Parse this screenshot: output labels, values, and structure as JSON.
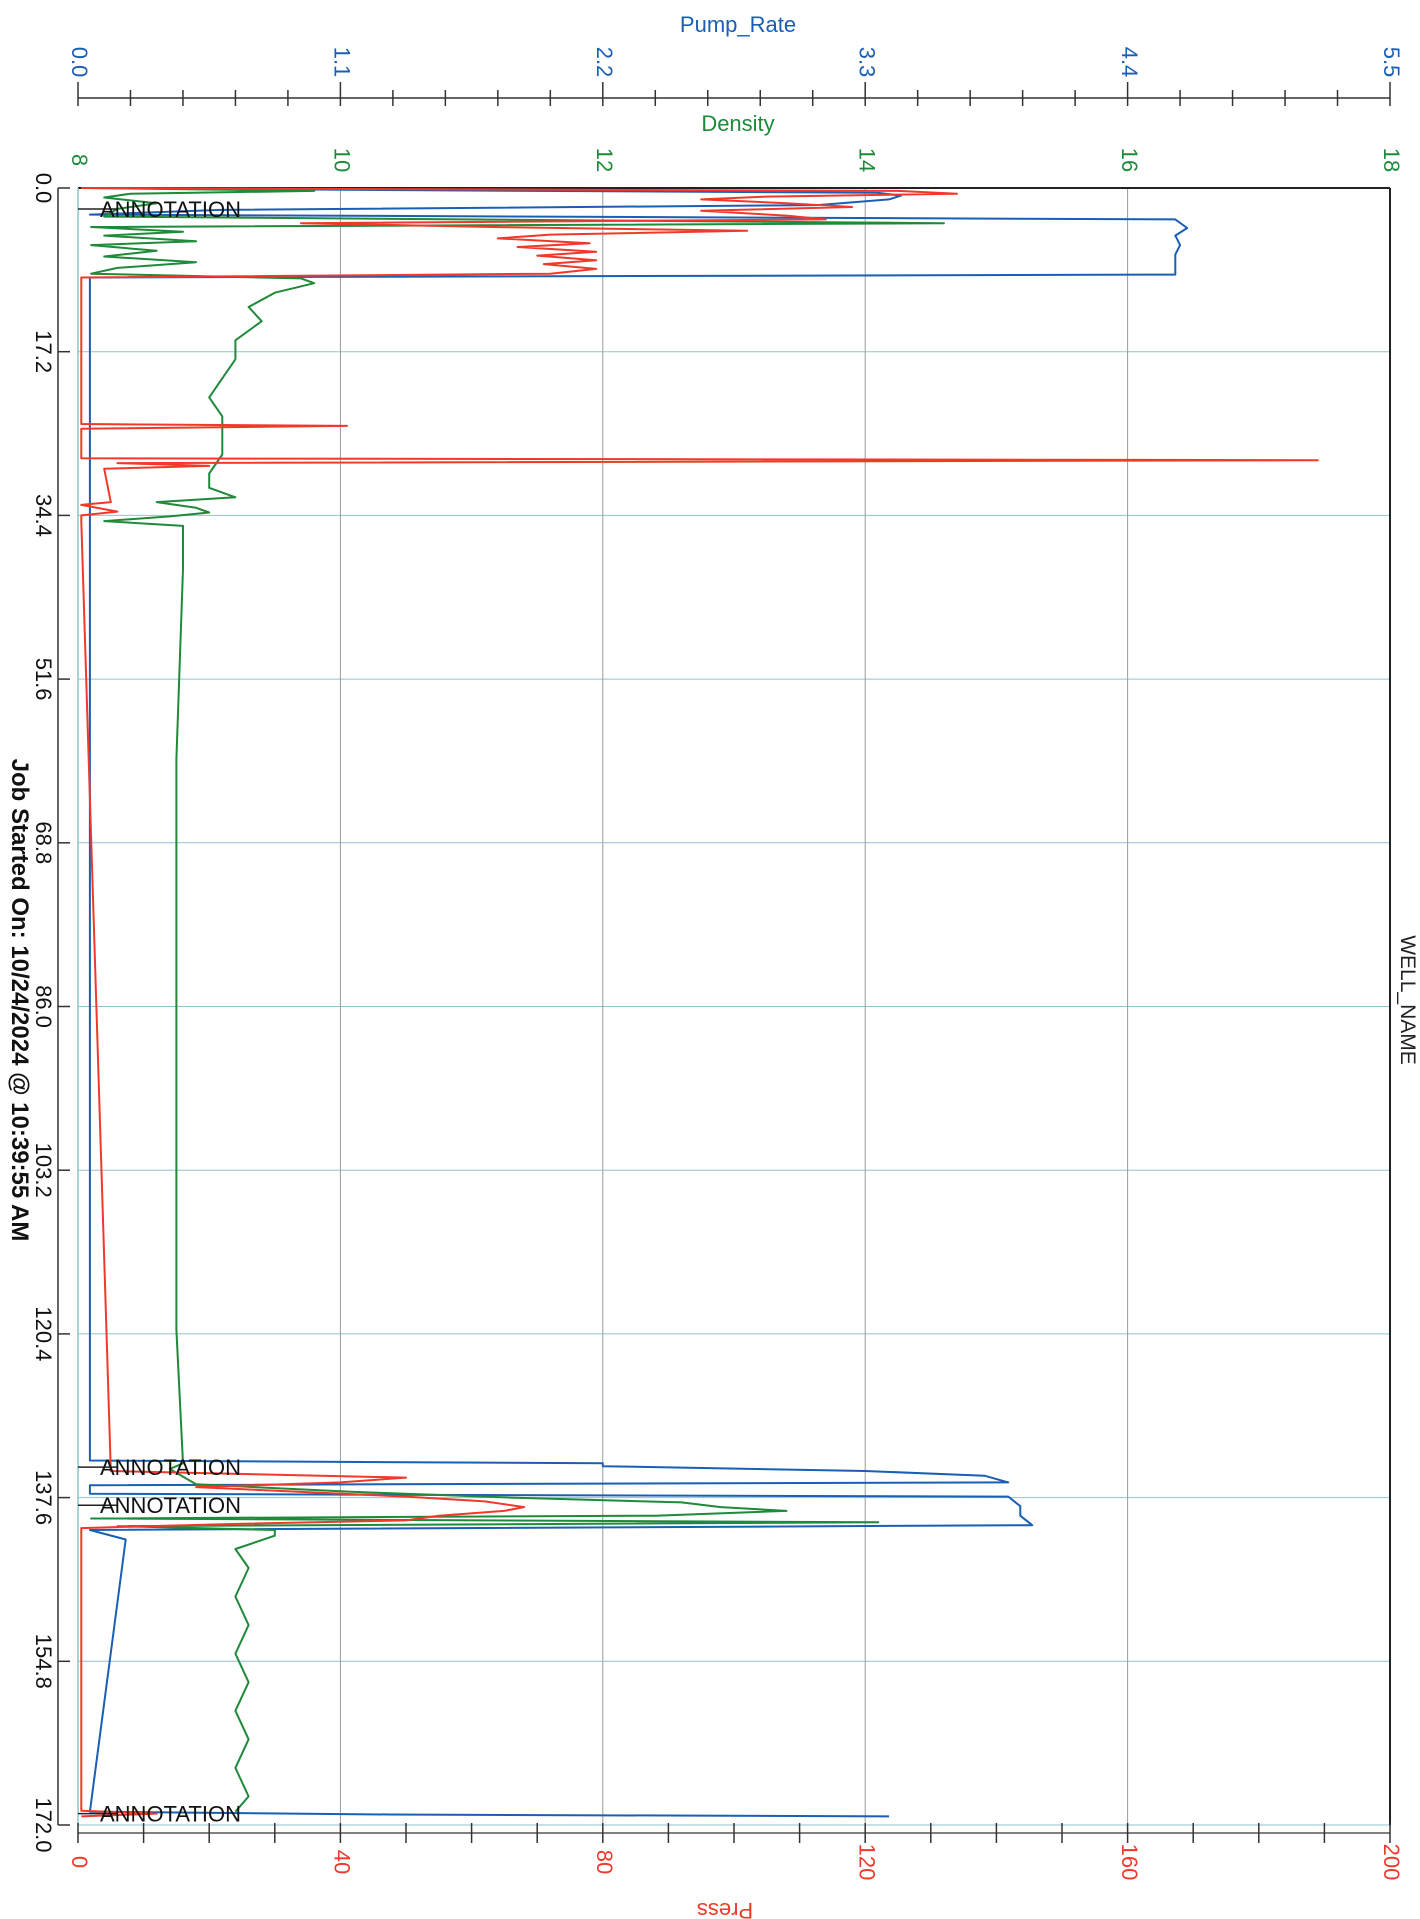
{
  "chart_data": {
    "type": "line",
    "orientation": "rotated-90-clockwise",
    "well_name": "WELL_NAME",
    "footer": "Job Started On: 10/24/2024 @ 10:39:55 AM",
    "time_axis": {
      "range": [
        0,
        172
      ],
      "ticks": [
        "0.0",
        "17.2",
        "34.4",
        "51.6",
        "68.8",
        "86.0",
        "103.2",
        "120.4",
        "137.6",
        "154.8",
        "172.0"
      ]
    },
    "axes": {
      "pump_rate": {
        "label": "Pump_Rate",
        "color": "#1a5fb4",
        "range": [
          0,
          5.5
        ],
        "ticks": [
          "0.0",
          "1.1",
          "2.2",
          "3.3",
          "4.4",
          "5.5"
        ]
      },
      "density": {
        "label": "Density",
        "color": "#1e8a3a",
        "range": [
          8,
          18
        ],
        "ticks": [
          "8",
          "10",
          "12",
          "14",
          "16",
          "18"
        ]
      },
      "press": {
        "label": "Press",
        "color": "#f0392b",
        "range": [
          0,
          200
        ],
        "ticks": [
          "0",
          "40",
          "80",
          "120",
          "160",
          "200"
        ]
      }
    },
    "grid": true,
    "annotations": [
      {
        "t": 2.2,
        "text": "ANNOTATION"
      },
      {
        "t": 134.4,
        "text": "ANNOTATION"
      },
      {
        "t": 138.4,
        "text": "ANNOTATION"
      },
      {
        "t": 170.8,
        "text": "ANNOTATION"
      }
    ],
    "series": [
      {
        "name": "Pump_Rate",
        "axis": "pump_rate",
        "color": "#1a5fb4",
        "points": [
          [
            0,
            0.05
          ],
          [
            0.2,
            1.2
          ],
          [
            0.5,
            3.35
          ],
          [
            0.8,
            3.45
          ],
          [
            1.2,
            3.4
          ],
          [
            1.8,
            3.1
          ],
          [
            2.3,
            0.6
          ],
          [
            2.8,
            0.05
          ],
          [
            3.3,
            4.6
          ],
          [
            4.2,
            4.65
          ],
          [
            5.0,
            4.6
          ],
          [
            6.0,
            4.62
          ],
          [
            7.0,
            4.6
          ],
          [
            8.0,
            4.6
          ],
          [
            9.1,
            4.6
          ],
          [
            9.4,
            0.05
          ],
          [
            133.7,
            0.05
          ],
          [
            134.0,
            2.2
          ],
          [
            134.3,
            2.2
          ],
          [
            134.8,
            3.3
          ],
          [
            135.3,
            3.8
          ],
          [
            136.0,
            3.9
          ],
          [
            136.3,
            0.05
          ],
          [
            137.2,
            0.05
          ],
          [
            137.5,
            3.9
          ],
          [
            138.5,
            3.95
          ],
          [
            139.5,
            3.95
          ],
          [
            140.5,
            4.0
          ],
          [
            141.0,
            0.05
          ],
          [
            142.0,
            0.2
          ],
          [
            170.6,
            0.05
          ],
          [
            170.9,
            1.3
          ],
          [
            171.1,
            3.4
          ]
        ]
      },
      {
        "name": "Density",
        "axis": "density",
        "color": "#1e8a3a",
        "points": [
          [
            0,
            8.05
          ],
          [
            0.3,
            9.8
          ],
          [
            0.6,
            8.4
          ],
          [
            1.0,
            8.2
          ],
          [
            1.6,
            8.6
          ],
          [
            2.2,
            8.3
          ],
          [
            3.0,
            8.2
          ],
          [
            3.7,
            14.6
          ],
          [
            4.1,
            8.1
          ],
          [
            4.6,
            8.8
          ],
          [
            5.0,
            8.2
          ],
          [
            5.6,
            8.9
          ],
          [
            6.0,
            8.1
          ],
          [
            6.6,
            8.6
          ],
          [
            7.2,
            8.2
          ],
          [
            7.8,
            8.9
          ],
          [
            8.4,
            8.3
          ],
          [
            9.0,
            8.1
          ],
          [
            9.5,
            9.7
          ],
          [
            10.0,
            9.8
          ],
          [
            11.0,
            9.5
          ],
          [
            12.5,
            9.3
          ],
          [
            14.0,
            9.4
          ],
          [
            16.0,
            9.2
          ],
          [
            18.0,
            9.2
          ],
          [
            20.0,
            9.1
          ],
          [
            22.0,
            9.0
          ],
          [
            24.0,
            9.1
          ],
          [
            26.0,
            9.1
          ],
          [
            28.0,
            9.1
          ],
          [
            30.0,
            9.0
          ],
          [
            31.5,
            9.0
          ],
          [
            32.5,
            9.2
          ],
          [
            33.0,
            8.6
          ],
          [
            33.6,
            8.9
          ],
          [
            34.1,
            9.0
          ],
          [
            34.5,
            8.7
          ],
          [
            35.0,
            8.2
          ],
          [
            35.5,
            8.8
          ],
          [
            40.0,
            8.8
          ],
          [
            60.0,
            8.75
          ],
          [
            80.0,
            8.75
          ],
          [
            100.0,
            8.75
          ],
          [
            120.0,
            8.75
          ],
          [
            134.0,
            8.8
          ],
          [
            134.6,
            8.7
          ],
          [
            136.2,
            8.9
          ],
          [
            137.0,
            10.1
          ],
          [
            137.6,
            11.3
          ],
          [
            138.1,
            12.6
          ],
          [
            138.6,
            12.9
          ],
          [
            139.0,
            13.4
          ],
          [
            139.5,
            12.4
          ],
          [
            139.8,
            8.1
          ],
          [
            140.2,
            14.1
          ],
          [
            140.6,
            8.3
          ],
          [
            141.0,
            9.5
          ],
          [
            141.6,
            9.5
          ],
          [
            143.0,
            9.2
          ],
          [
            145.0,
            9.3
          ],
          [
            148.0,
            9.2
          ],
          [
            151.0,
            9.3
          ],
          [
            154.0,
            9.2
          ],
          [
            157.0,
            9.3
          ],
          [
            160.0,
            9.2
          ],
          [
            163.0,
            9.3
          ],
          [
            166.0,
            9.2
          ],
          [
            169.0,
            9.3
          ],
          [
            170.6,
            9.2
          ]
        ]
      },
      {
        "name": "Press",
        "axis": "press",
        "color": "#f0392b",
        "points": [
          [
            0,
            0.5
          ],
          [
            0.3,
            125
          ],
          [
            0.6,
            134
          ],
          [
            0.9,
            105
          ],
          [
            1.2,
            95
          ],
          [
            1.6,
            108
          ],
          [
            2.0,
            118
          ],
          [
            2.4,
            95
          ],
          [
            2.9,
            108
          ],
          [
            3.3,
            114
          ],
          [
            3.7,
            34
          ],
          [
            4.1,
            63
          ],
          [
            4.5,
            102
          ],
          [
            4.9,
            72
          ],
          [
            5.3,
            64
          ],
          [
            5.8,
            78
          ],
          [
            6.2,
            67
          ],
          [
            6.7,
            79
          ],
          [
            7.1,
            70
          ],
          [
            7.6,
            79
          ],
          [
            8.0,
            71
          ],
          [
            8.5,
            79
          ],
          [
            9.0,
            72
          ],
          [
            9.4,
            0.5
          ],
          [
            24.8,
            0.5
          ],
          [
            25.0,
            41
          ],
          [
            25.3,
            0.5
          ],
          [
            28.4,
            0.5
          ],
          [
            28.6,
            189
          ],
          [
            28.9,
            6
          ],
          [
            29.2,
            20
          ],
          [
            29.5,
            4
          ],
          [
            33.0,
            5
          ],
          [
            33.3,
            0.5
          ],
          [
            34.0,
            6
          ],
          [
            34.4,
            0.5
          ],
          [
            35.0,
            0.5
          ],
          [
            134.8,
            5
          ],
          [
            135.5,
            50
          ],
          [
            136.0,
            40
          ],
          [
            136.5,
            18
          ],
          [
            137.5,
            50
          ],
          [
            138.0,
            62
          ],
          [
            138.6,
            68
          ],
          [
            139.0,
            65
          ],
          [
            139.5,
            55
          ],
          [
            140.0,
            50
          ],
          [
            140.4,
            22
          ],
          [
            140.8,
            0.5
          ],
          [
            170.5,
            0.5
          ],
          [
            170.8,
            12
          ],
          [
            171.1,
            0.5
          ]
        ]
      }
    ]
  }
}
